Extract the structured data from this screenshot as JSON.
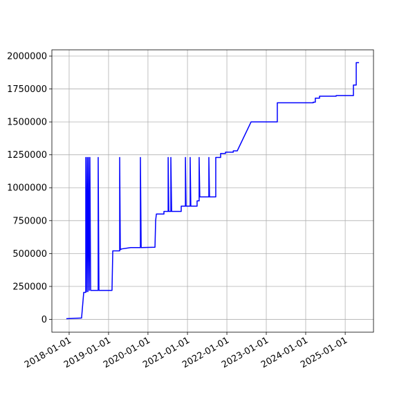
{
  "chart_data": {
    "type": "line",
    "color": "#0000ff",
    "grid": true,
    "x": [
      "2017-12-06",
      "2018-04-26",
      "2018-05-16",
      "2018-06-04",
      "2018-06-04",
      "2018-06-10",
      "2018-06-17",
      "2018-06-23",
      "2018-06-29",
      "2018-07-06",
      "2018-07-12",
      "2018-07-19",
      "2018-09-27",
      "2018-09-27",
      "2018-10-04",
      "2019-02-02",
      "2019-02-09",
      "2019-04-14",
      "2019-04-14",
      "2019-04-20",
      "2019-05-03",
      "2019-07-25",
      "2019-10-23",
      "2019-10-23",
      "2019-10-30",
      "2020-03-06",
      "2020-03-12",
      "2020-03-19",
      "2020-05-28",
      "2020-05-28",
      "2020-07-06",
      "2020-07-06",
      "2020-07-12",
      "2020-07-31",
      "2020-07-31",
      "2020-08-07",
      "2020-11-04",
      "2020-11-04",
      "2020-12-13",
      "2020-12-13",
      "2020-12-19",
      "2021-01-26",
      "2021-01-26",
      "2021-02-01",
      "2021-03-31",
      "2021-03-31",
      "2021-04-19",
      "2021-04-19",
      "2021-04-25",
      "2021-07-18",
      "2021-07-18",
      "2021-07-24",
      "2021-09-20",
      "2021-09-20",
      "2021-11-04",
      "2021-11-04",
      "2021-12-19",
      "2021-12-19",
      "2022-03-01",
      "2022-03-01",
      "2022-04-07",
      "2022-08-13",
      "2023-04-13",
      "2023-04-13",
      "2024-03-11",
      "2024-03-11",
      "2024-03-30",
      "2024-03-30",
      "2024-05-08",
      "2024-05-08",
      "2024-10-09",
      "2024-10-09",
      "2025-03-18",
      "2025-03-18",
      "2025-04-13",
      "2025-04-13",
      "2025-05-09"
    ],
    "values": [
      5000,
      10000,
      205000,
      205000,
      1230000,
      210000,
      1230000,
      210000,
      1230000,
      220000,
      1230000,
      220000,
      220000,
      1230000,
      220000,
      220000,
      520000,
      520000,
      1230000,
      530000,
      535000,
      545000,
      545000,
      1230000,
      545000,
      548000,
      750000,
      800000,
      800000,
      820000,
      820000,
      1230000,
      820000,
      820000,
      1230000,
      820000,
      820000,
      860000,
      860000,
      1230000,
      860000,
      860000,
      1230000,
      860000,
      860000,
      900000,
      900000,
      1230000,
      930000,
      930000,
      1230000,
      930000,
      930000,
      1230000,
      1230000,
      1260000,
      1260000,
      1270000,
      1270000,
      1280000,
      1280000,
      1500000,
      1500000,
      1645000,
      1645000,
      1650000,
      1650000,
      1680000,
      1680000,
      1695000,
      1695000,
      1700000,
      1700000,
      1780000,
      1780000,
      1950000,
      1950000
    ],
    "xlim": [
      "2017-07-25",
      "2025-09-20"
    ],
    "xticks": [
      "2018-01-01",
      "2019-01-01",
      "2020-01-01",
      "2021-01-01",
      "2022-01-01",
      "2023-01-01",
      "2024-01-01",
      "2025-01-01"
    ],
    "ylim": [
      -97500,
      2047500
    ],
    "yticks": [
      0,
      250000,
      500000,
      750000,
      1000000,
      1250000,
      1500000,
      1750000,
      2000000
    ]
  }
}
